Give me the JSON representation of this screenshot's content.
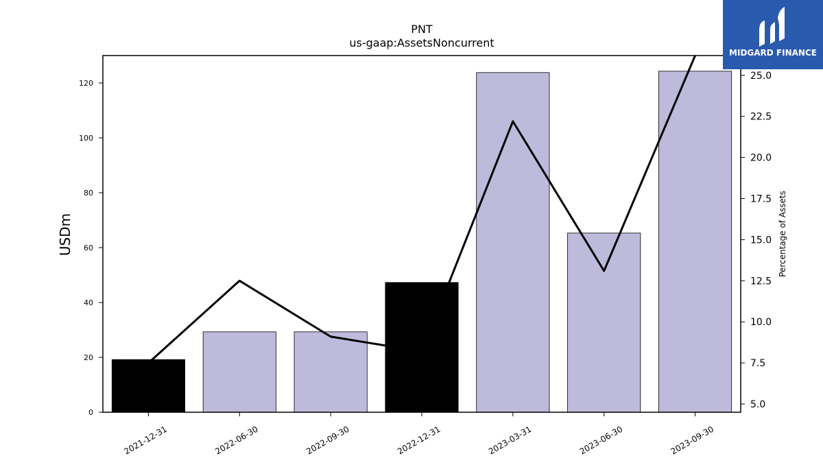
{
  "chart_data": {
    "type": "bar",
    "title": "PNT",
    "subtitle": "us-gaap:AssetsNoncurrent",
    "ylabel": "USDm",
    "y2label": "Percentage of Assets",
    "categories": [
      "2021-12-31",
      "2022-06-30",
      "2022-09-30",
      "2022-12-31",
      "2023-03-31",
      "2023-06-30",
      "2023-09-30"
    ],
    "series": [
      {
        "type": "bar",
        "values": [
          19.2,
          29.3,
          29.3,
          47.3,
          123.8,
          65.3,
          124.3
        ]
      },
      {
        "type": "line",
        "axis": "right",
        "values": [
          7.5,
          12.5,
          9.1,
          8.2,
          22.2,
          13.1,
          26.2
        ]
      }
    ],
    "bar_colors": [
      "#000000",
      "#bdbadb",
      "#bdbadb",
      "#000000",
      "#bdbadb",
      "#bdbadb",
      "#bdbadb"
    ],
    "line_color": "#000000",
    "ylim": [
      0,
      130
    ],
    "y2lim": [
      4.5,
      26.2
    ],
    "yticks": [
      0,
      20,
      40,
      60,
      80,
      100,
      120
    ],
    "y2ticks": [
      "5.0",
      "7.5",
      "10.0",
      "12.5",
      "15.0",
      "17.5",
      "20.0",
      "22.5",
      "25.0"
    ],
    "grid": false
  },
  "logo": {
    "text": "MIDGARD FINANCE",
    "background": "#2a5aae",
    "icon": "midgard-logo-icon"
  }
}
